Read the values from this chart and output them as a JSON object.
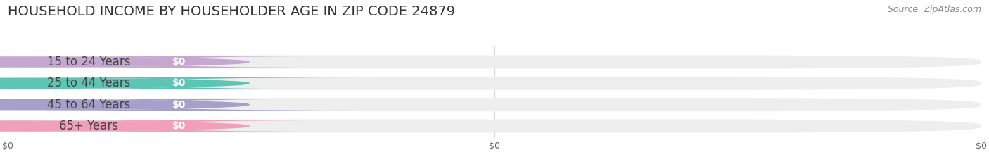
{
  "title": "HOUSEHOLD INCOME BY HOUSEHOLDER AGE IN ZIP CODE 24879",
  "source": "Source: ZipAtlas.com",
  "categories": [
    "15 to 24 Years",
    "25 to 44 Years",
    "45 to 64 Years",
    "65+ Years"
  ],
  "values": [
    0,
    0,
    0,
    0
  ],
  "bar_colors": [
    "#c4a8d0",
    "#5ec4b4",
    "#a8a0cc",
    "#f0a0b8"
  ],
  "background_color": "#ffffff",
  "track_color": "#eeeeee",
  "title_fontsize": 14,
  "source_fontsize": 9,
  "label_fontsize": 12,
  "value_fontsize": 10,
  "xtick_labels": [
    "$0",
    "$0",
    "$0"
  ],
  "xtick_positions": [
    0.0,
    0.5,
    1.0
  ],
  "grid_color": "#d8d8d8",
  "label_text_color": "#444444",
  "value_text_color": "#ffffff",
  "source_color": "#888888"
}
